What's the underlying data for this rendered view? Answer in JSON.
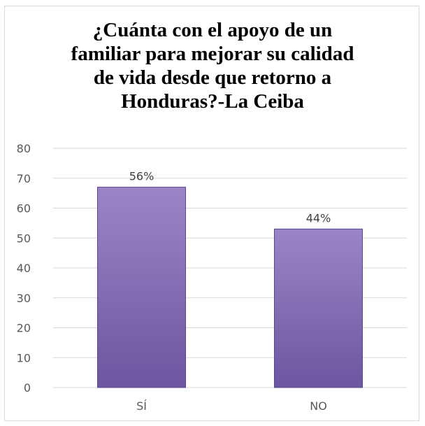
{
  "chart_data": {
    "type": "bar",
    "title_lines": [
      "¿Cuánta con el apoyo de un",
      "familiar para mejorar su calidad",
      "de vida desde que retorno a",
      "Honduras?-La Ceiba"
    ],
    "categories": [
      "SÍ",
      "NO"
    ],
    "values": [
      67,
      53
    ],
    "data_labels": [
      "56%",
      "44%"
    ],
    "ylim": [
      0,
      80
    ],
    "yticks": [
      "0",
      "10",
      "20",
      "30",
      "40",
      "50",
      "60",
      "70",
      "80"
    ],
    "grid": true,
    "colors": {
      "bar_top": "#9c85c6",
      "bar_bottom": "#6e55a0",
      "bar_edge": "#5b4590",
      "grid": "#d9d9d9"
    }
  }
}
